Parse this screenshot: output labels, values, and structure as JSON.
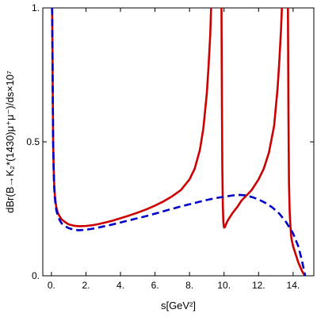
{
  "chart_data": {
    "type": "line",
    "xlabel": "s[GeV²]",
    "ylabel": "dBr(B→K₂*(1430)μ⁺μ⁻)/ds×10⁷",
    "xlim": [
      -0.5,
      15.2
    ],
    "ylim": [
      0,
      1
    ],
    "x_ticks": [
      0,
      2,
      4,
      6,
      8,
      10,
      12,
      14
    ],
    "x_tick_labels": [
      "0.",
      "2.",
      "4.",
      "6.",
      "8.",
      "10.",
      "12.",
      "14."
    ],
    "y_ticks": [
      0,
      0.5,
      1
    ],
    "y_tick_labels": [
      "0.",
      "0.5",
      "1."
    ],
    "grid": false,
    "series": [
      {
        "style": "solid",
        "color": "#cc0000",
        "segments": [
          {
            "x": [
              0.04,
              0.06,
              0.08,
              0.1,
              0.13,
              0.16,
              0.2,
              0.25,
              0.3,
              0.4,
              0.5,
              0.6,
              0.8,
              1.0,
              1.3,
              1.6,
              2.0,
              2.5,
              3.0,
              3.5,
              4.0,
              4.5,
              5.0,
              5.5,
              6.0,
              6.5,
              7.0,
              7.5,
              8.0,
              8.3,
              8.6,
              8.8,
              9.0,
              9.1,
              9.2,
              9.25
            ],
            "y": [
              1.0,
              0.85,
              0.65,
              0.5,
              0.4,
              0.34,
              0.3,
              0.27,
              0.25,
              0.23,
              0.22,
              0.21,
              0.2,
              0.192,
              0.187,
              0.185,
              0.186,
              0.19,
              0.197,
              0.205,
              0.215,
              0.225,
              0.236,
              0.248,
              0.262,
              0.278,
              0.297,
              0.32,
              0.36,
              0.4,
              0.47,
              0.55,
              0.68,
              0.78,
              0.9,
              1.0
            ]
          },
          {
            "x": [
              9.85,
              9.88,
              9.9,
              9.93,
              9.96,
              10.0,
              10.05,
              10.1,
              10.2,
              10.3,
              10.5,
              10.8,
              11.0,
              11.3,
              11.6,
              12.0,
              12.3,
              12.6,
              12.9,
              13.1,
              13.2,
              13.3,
              13.35
            ],
            "y": [
              1.0,
              0.6,
              0.4,
              0.26,
              0.2,
              0.18,
              0.182,
              0.19,
              0.205,
              0.215,
              0.235,
              0.26,
              0.28,
              0.3,
              0.32,
              0.36,
              0.4,
              0.46,
              0.56,
              0.7,
              0.8,
              0.92,
              1.0
            ]
          },
          {
            "x": [
              13.7,
              13.73,
              13.76,
              13.8,
              13.85,
              13.9,
              14.0,
              14.1,
              14.2,
              14.3,
              14.4,
              14.5,
              14.6,
              14.7
            ],
            "y": [
              1.0,
              0.6,
              0.35,
              0.24,
              0.18,
              0.14,
              0.11,
              0.09,
              0.07,
              0.05,
              0.035,
              0.02,
              0.008,
              0.0
            ]
          }
        ]
      },
      {
        "style": "dashed",
        "color": "#0000cc",
        "segments": [
          {
            "x": [
              0.04,
              0.06,
              0.08,
              0.1,
              0.13,
              0.16,
              0.2,
              0.25,
              0.3,
              0.4,
              0.5,
              0.6,
              0.8,
              1.0,
              1.3,
              1.6,
              2.0,
              2.5,
              3.0,
              3.5,
              4.0,
              4.5,
              5.0,
              5.5,
              6.0,
              6.5,
              7.0,
              7.5,
              8.0,
              8.5,
              9.0,
              9.5,
              10.0,
              10.5,
              10.9,
              11.3,
              11.7,
              12.0,
              12.4,
              12.8,
              13.2,
              13.6,
              14.0,
              14.3,
              14.5,
              14.7
            ],
            "y": [
              1.0,
              0.85,
              0.65,
              0.5,
              0.4,
              0.33,
              0.29,
              0.26,
              0.24,
              0.22,
              0.205,
              0.195,
              0.185,
              0.178,
              0.172,
              0.17,
              0.172,
              0.177,
              0.184,
              0.191,
              0.199,
              0.207,
              0.215,
              0.223,
              0.232,
              0.241,
              0.25,
              0.259,
              0.267,
              0.275,
              0.283,
              0.29,
              0.295,
              0.3,
              0.302,
              0.3,
              0.292,
              0.285,
              0.272,
              0.255,
              0.232,
              0.2,
              0.158,
              0.11,
              0.06,
              0.0
            ]
          }
        ]
      }
    ]
  }
}
